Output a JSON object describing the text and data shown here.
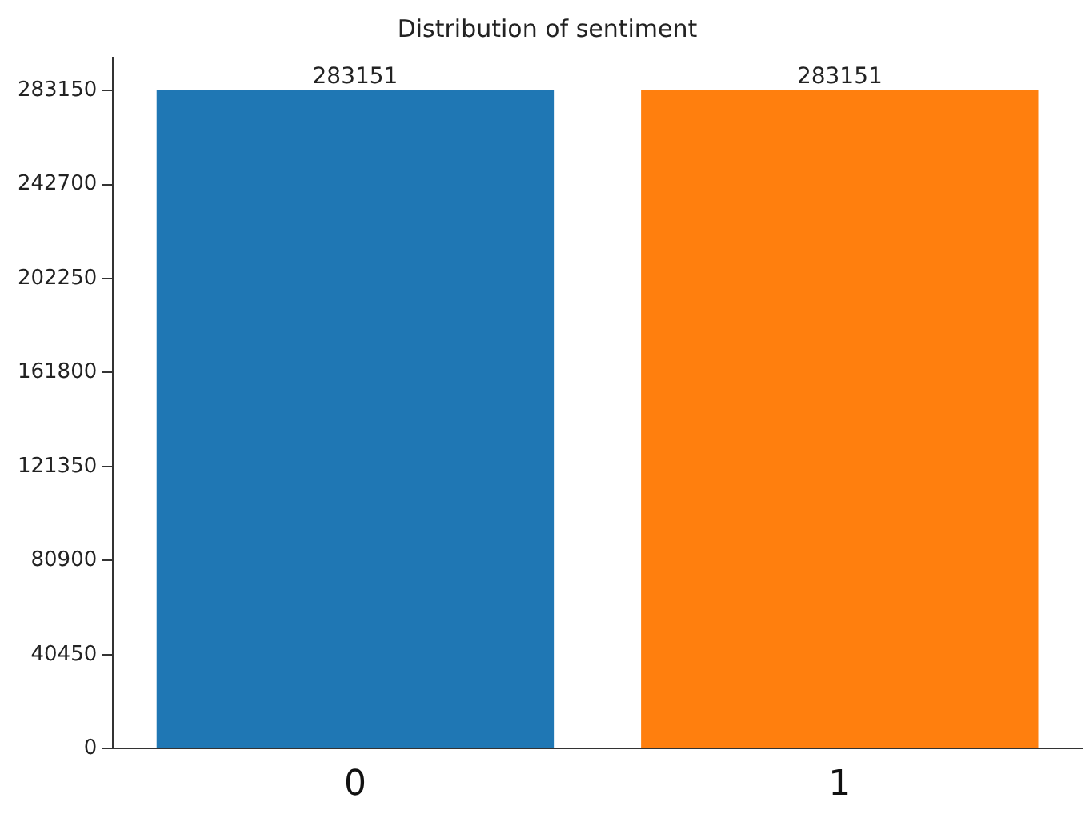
{
  "chart_data": {
    "type": "bar",
    "title": "Distribution of sentiment",
    "categories": [
      "0",
      "1"
    ],
    "values": [
      283151,
      283151
    ],
    "colors": [
      "#1f77b4",
      "#ff7f0e"
    ],
    "ylim": [
      0,
      297300
    ],
    "yticks": [
      0,
      40450,
      80900,
      121350,
      161800,
      202250,
      242700,
      283150
    ],
    "data_labels": true,
    "grid": false,
    "legend": false
  }
}
